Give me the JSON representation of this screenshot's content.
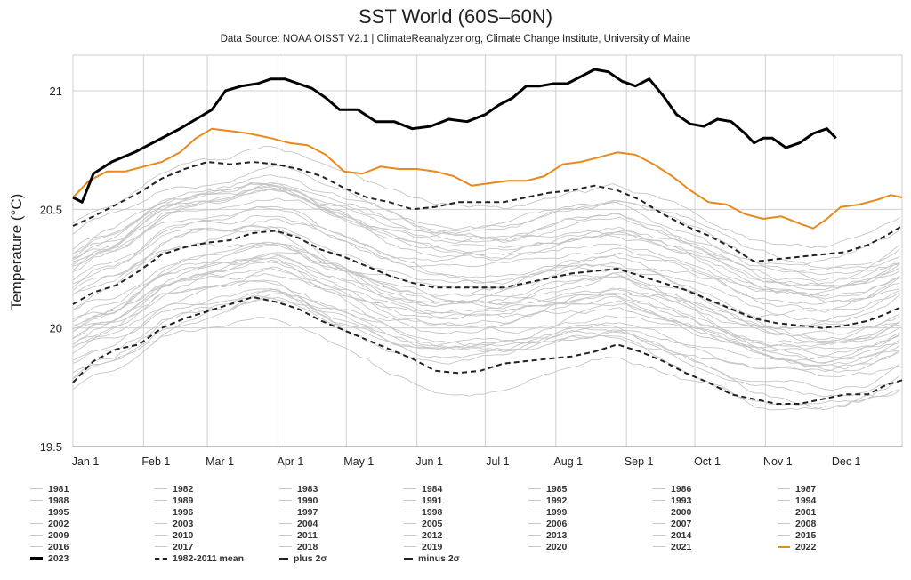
{
  "chart_data": {
    "type": "line",
    "title": "SST World (60S–60N)",
    "subtitle": "Data Source: NOAA OISST V2.1 | ClimateReanalyzer.org, Climate Change Institute, University of Maine",
    "ylabel": "Temperature (°C)",
    "xlabel": "",
    "ylim": [
      19.5,
      21.15
    ],
    "xlim": [
      1,
      365
    ],
    "yticks": [
      19.5,
      20,
      20.5,
      21
    ],
    "ytick_labels": [
      "19.5",
      "20",
      "20.5",
      "21"
    ],
    "xticks": [
      1,
      32,
      60,
      91,
      121,
      152,
      182,
      213,
      244,
      274,
      305,
      335
    ],
    "xtick_labels": [
      "Jan 1",
      "Feb 1",
      "Mar 1",
      "Apr 1",
      "May 1",
      "Jun 1",
      "Jul 1",
      "Aug 1",
      "Sep 1",
      "Oct 1",
      "Nov 1",
      "Dec 1"
    ],
    "grid": true,
    "x_unit": "day of year",
    "series": [
      {
        "name": "2023",
        "color": "#000000",
        "style": "solid-thick",
        "x": [
          1,
          5,
          10,
          18,
          28,
          38,
          48,
          55,
          62,
          68,
          75,
          82,
          88,
          94,
          100,
          106,
          112,
          118,
          126,
          134,
          142,
          150,
          158,
          166,
          174,
          182,
          188,
          194,
          200,
          206,
          212,
          218,
          224,
          230,
          236,
          242,
          248,
          254,
          260,
          266,
          272,
          278,
          284,
          290,
          296,
          300,
          304,
          308,
          314,
          320,
          326,
          332,
          336
        ],
        "y": [
          20.55,
          20.53,
          20.65,
          20.7,
          20.74,
          20.79,
          20.84,
          20.88,
          20.92,
          21.0,
          21.02,
          21.03,
          21.05,
          21.05,
          21.03,
          21.01,
          20.97,
          20.92,
          20.92,
          20.87,
          20.87,
          20.84,
          20.85,
          20.88,
          20.87,
          20.9,
          20.94,
          20.97,
          21.02,
          21.02,
          21.03,
          21.03,
          21.06,
          21.09,
          21.08,
          21.04,
          21.02,
          21.05,
          20.98,
          20.9,
          20.86,
          20.85,
          20.88,
          20.87,
          20.82,
          20.78,
          20.8,
          20.8,
          20.76,
          20.78,
          20.82,
          20.84,
          20.8
        ]
      },
      {
        "name": "2022",
        "color": "#e8891c",
        "style": "solid",
        "x": [
          1,
          8,
          16,
          24,
          32,
          40,
          48,
          55,
          62,
          70,
          78,
          88,
          96,
          104,
          112,
          120,
          128,
          136,
          144,
          152,
          160,
          168,
          176,
          184,
          192,
          200,
          208,
          216,
          224,
          232,
          240,
          248,
          256,
          264,
          272,
          280,
          288,
          296,
          304,
          312,
          320,
          326,
          332,
          338,
          346,
          354,
          360,
          365
        ],
        "y": [
          20.55,
          20.62,
          20.66,
          20.66,
          20.68,
          20.7,
          20.74,
          20.8,
          20.84,
          20.83,
          20.82,
          20.8,
          20.78,
          20.77,
          20.73,
          20.66,
          20.65,
          20.68,
          20.67,
          20.67,
          20.66,
          20.64,
          20.6,
          20.61,
          20.62,
          20.62,
          20.64,
          20.69,
          20.7,
          20.72,
          20.74,
          20.73,
          20.69,
          20.64,
          20.58,
          20.53,
          20.52,
          20.48,
          20.46,
          20.47,
          20.44,
          20.42,
          20.46,
          20.51,
          20.52,
          20.54,
          20.56,
          20.55
        ]
      },
      {
        "name": "1982-2011 mean",
        "color": "#222222",
        "style": "dashed",
        "x": [
          1,
          10,
          20,
          30,
          40,
          50,
          60,
          70,
          80,
          90,
          100,
          110,
          120,
          130,
          140,
          150,
          160,
          170,
          180,
          190,
          200,
          210,
          220,
          230,
          240,
          250,
          260,
          270,
          280,
          290,
          300,
          310,
          320,
          330,
          340,
          350,
          358,
          365
        ],
        "y": [
          20.1,
          20.15,
          20.18,
          20.24,
          20.31,
          20.34,
          20.36,
          20.37,
          20.4,
          20.41,
          20.38,
          20.33,
          20.3,
          20.26,
          20.22,
          20.19,
          20.17,
          20.17,
          20.17,
          20.17,
          20.19,
          20.21,
          20.23,
          20.24,
          20.25,
          20.22,
          20.19,
          20.16,
          20.12,
          20.08,
          20.04,
          20.02,
          20.01,
          20.0,
          20.01,
          20.03,
          20.06,
          20.09
        ]
      },
      {
        "name": "plus 2σ",
        "color": "#222222",
        "style": "dashed",
        "x": [
          1,
          10,
          20,
          30,
          40,
          50,
          60,
          70,
          80,
          90,
          100,
          110,
          120,
          130,
          140,
          150,
          160,
          170,
          180,
          190,
          200,
          210,
          220,
          230,
          240,
          250,
          260,
          270,
          280,
          290,
          300,
          310,
          320,
          330,
          340,
          350,
          358,
          365
        ],
        "y": [
          20.43,
          20.47,
          20.52,
          20.57,
          20.63,
          20.67,
          20.7,
          20.69,
          20.7,
          20.69,
          20.67,
          20.64,
          20.59,
          20.55,
          20.53,
          20.5,
          20.51,
          20.53,
          20.53,
          20.53,
          20.55,
          20.57,
          20.58,
          20.6,
          20.58,
          20.54,
          20.48,
          20.43,
          20.39,
          20.34,
          20.28,
          20.29,
          20.3,
          20.31,
          20.32,
          20.35,
          20.39,
          20.43
        ]
      },
      {
        "name": "minus 2σ",
        "color": "#222222",
        "style": "dashed",
        "x": [
          1,
          10,
          20,
          30,
          40,
          50,
          60,
          70,
          80,
          90,
          100,
          110,
          120,
          130,
          140,
          150,
          160,
          170,
          180,
          190,
          200,
          210,
          220,
          230,
          240,
          250,
          260,
          270,
          280,
          290,
          300,
          310,
          320,
          330,
          340,
          350,
          358,
          365
        ],
        "y": [
          19.77,
          19.86,
          19.91,
          19.93,
          20.0,
          20.04,
          20.07,
          20.1,
          20.13,
          20.11,
          20.08,
          20.03,
          19.99,
          19.95,
          19.91,
          19.87,
          19.82,
          19.81,
          19.82,
          19.85,
          19.86,
          19.87,
          19.88,
          19.9,
          19.93,
          19.9,
          19.86,
          19.81,
          19.77,
          19.72,
          19.7,
          19.68,
          19.68,
          19.7,
          19.72,
          19.72,
          19.76,
          19.78
        ]
      }
    ],
    "background_years": [
      "1981",
      "1982",
      "1983",
      "1984",
      "1985",
      "1986",
      "1987",
      "1988",
      "1989",
      "1990",
      "1991",
      "1992",
      "1993",
      "1994",
      "1995",
      "1996",
      "1997",
      "1998",
      "1999",
      "2000",
      "2001",
      "2002",
      "2003",
      "2004",
      "2005",
      "2006",
      "2007",
      "2008",
      "2009",
      "2010",
      "2011",
      "2012",
      "2013",
      "2014",
      "2015",
      "2016",
      "2017",
      "2018",
      "2019",
      "2020",
      "2021"
    ],
    "background_color": "#c6c6c6"
  },
  "legend": {
    "placement": "bottom",
    "items": [
      "1981",
      "1982",
      "1983",
      "1984",
      "1985",
      "1986",
      "1987",
      "1988",
      "1989",
      "1990",
      "1991",
      "1992",
      "1993",
      "1994",
      "1995",
      "1996",
      "1997",
      "1998",
      "1999",
      "2000",
      "2001",
      "2002",
      "2003",
      "2004",
      "2005",
      "2006",
      "2007",
      "2008",
      "2009",
      "2010",
      "2011",
      "2012",
      "2013",
      "2014",
      "2015",
      "2016",
      "2017",
      "2018",
      "2019",
      "2020",
      "2021",
      "2022",
      "2023",
      "1982-2011 mean",
      "plus 2σ",
      "minus 2σ"
    ]
  }
}
